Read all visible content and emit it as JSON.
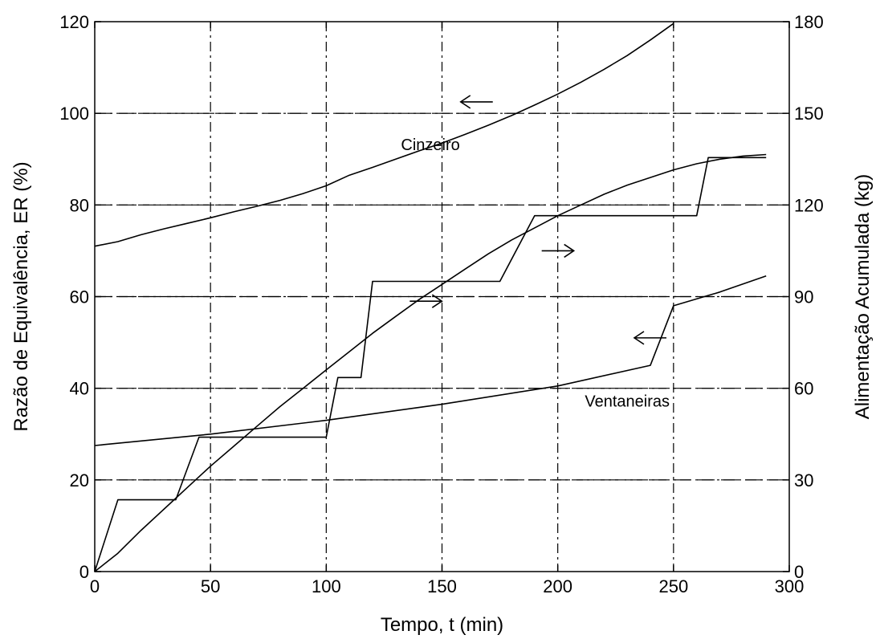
{
  "chart_data": {
    "type": "line",
    "xlabel": "Tempo, t (min)",
    "ylabel_left": "Razão de Equivalência, ER (%)",
    "ylabel_right": "Alimentação Acumulada (kg)",
    "xlim": [
      0,
      300
    ],
    "ylim_left": [
      0,
      120
    ],
    "ylim_right": [
      0,
      180
    ],
    "xticks": [
      "0",
      "50",
      "100",
      "150",
      "200",
      "250",
      "300"
    ],
    "yticks_left": [
      "0",
      "20",
      "40",
      "60",
      "80",
      "100",
      "120"
    ],
    "yticks_right": [
      "0",
      "30",
      "60",
      "90",
      "120",
      "150",
      "180"
    ],
    "grid": true,
    "series": [
      {
        "name": "Cinzeiro",
        "axis": "left",
        "x": [
          0,
          10,
          20,
          30,
          40,
          50,
          60,
          70,
          80,
          90,
          100,
          110,
          120,
          130,
          140,
          150,
          160,
          170,
          180,
          190,
          200,
          210,
          220,
          230,
          240,
          250
        ],
        "values": [
          71,
          72,
          73.5,
          74.8,
          76,
          77.2,
          78.5,
          79.7,
          81,
          82.5,
          84.2,
          86.5,
          88.2,
          90,
          91.8,
          93.5,
          95.4,
          97.4,
          99.5,
          101.8,
          104.2,
          106.8,
          109.6,
          112.6,
          116,
          119.6
        ]
      },
      {
        "name": "Ventaneiras",
        "axis": "left",
        "x": [
          0,
          50,
          100,
          150,
          200,
          240,
          250,
          270,
          290
        ],
        "values": [
          27.5,
          30,
          33,
          36.5,
          40.5,
          45,
          58,
          61,
          64.5
        ]
      },
      {
        "axis": "right",
        "x": [
          0,
          10,
          20,
          30,
          40,
          50,
          60,
          70,
          80,
          90,
          100,
          110,
          120,
          130,
          140,
          150,
          160,
          170,
          180,
          190,
          200,
          210,
          220,
          230,
          240,
          250,
          260,
          270,
          280,
          290
        ],
        "values": [
          0,
          6,
          13.5,
          20.5,
          27.5,
          34.5,
          41,
          47.5,
          54,
          60,
          66,
          72,
          78,
          83.5,
          89,
          94,
          99,
          104,
          108.5,
          112.5,
          116.5,
          120,
          123.5,
          126.5,
          129,
          131.5,
          133.5,
          135,
          136,
          136.5
        ]
      },
      {
        "axis": "right",
        "step": true,
        "x": [
          0,
          10,
          35,
          45,
          100,
          105,
          115,
          120,
          175,
          190,
          260,
          265,
          290
        ],
        "values": [
          0,
          23.5,
          23.5,
          44,
          44,
          63.5,
          63.5,
          95,
          95,
          116.5,
          116.5,
          135.5,
          135.5
        ]
      }
    ],
    "annotations": [
      {
        "text": "Cinzeiro",
        "x": 145,
        "y": 92
      },
      {
        "text": "Ventaneiras",
        "x": 230,
        "y": 36
      },
      {
        "arrow": "left",
        "x": 165,
        "y": 102.5
      },
      {
        "arrow": "right",
        "x": 200,
        "y": 70
      },
      {
        "arrow": "right",
        "x": 143,
        "y": 59
      },
      {
        "arrow": "left",
        "x": 240,
        "y": 51
      }
    ]
  }
}
